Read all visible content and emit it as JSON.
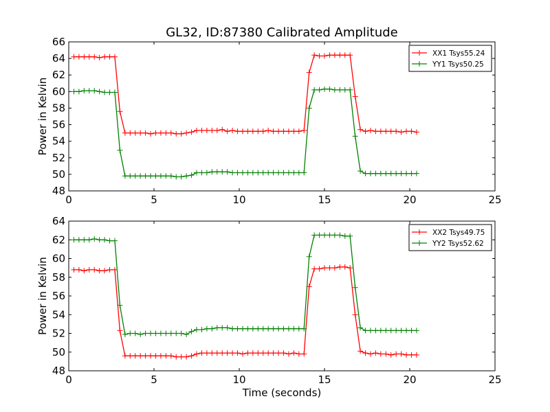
{
  "figure_title": "GL32, ID:87380 Calibrated Amplitude",
  "chart_data": [
    {
      "type": "line",
      "title": "GL32, ID:87380 Calibrated Amplitude",
      "xlabel": "",
      "ylabel": "Power in Kelvin",
      "xlim": [
        0,
        25
      ],
      "ylim": [
        48,
        66
      ],
      "xticks": [
        0,
        5,
        10,
        15,
        20,
        25
      ],
      "yticks": [
        48,
        50,
        52,
        54,
        56,
        58,
        60,
        62,
        64,
        66
      ],
      "legend_position": "top-right",
      "grid": false,
      "x": [
        0.3,
        0.6,
        0.9,
        1.2,
        1.5,
        1.8,
        2.1,
        2.4,
        2.7,
        3.0,
        3.3,
        3.6,
        3.9,
        4.2,
        4.5,
        4.8,
        5.1,
        5.4,
        5.7,
        6.0,
        6.3,
        6.6,
        6.9,
        7.2,
        7.5,
        7.8,
        8.1,
        8.4,
        8.7,
        9.0,
        9.3,
        9.6,
        9.9,
        10.2,
        10.5,
        10.8,
        11.1,
        11.4,
        11.7,
        12.0,
        12.3,
        12.6,
        12.9,
        13.2,
        13.5,
        13.8,
        14.1,
        14.4,
        14.7,
        15.0,
        15.3,
        15.6,
        15.9,
        16.2,
        16.5,
        16.8,
        17.1,
        17.4,
        17.7,
        18.0,
        18.3,
        18.6,
        18.9,
        19.2,
        19.5,
        19.8,
        20.1,
        20.4
      ],
      "series": [
        {
          "name": "XX1 Tsys55.24",
          "color": "#ff0000",
          "values": [
            64.2,
            64.2,
            64.2,
            64.2,
            64.2,
            64.1,
            64.2,
            64.2,
            64.2,
            57.6,
            55.0,
            55.0,
            55.0,
            55.0,
            55.0,
            54.9,
            55.0,
            55.0,
            55.0,
            55.0,
            54.9,
            54.9,
            55.0,
            55.1,
            55.3,
            55.3,
            55.3,
            55.3,
            55.3,
            55.4,
            55.2,
            55.3,
            55.2,
            55.2,
            55.2,
            55.2,
            55.2,
            55.2,
            55.3,
            55.2,
            55.2,
            55.2,
            55.2,
            55.2,
            55.2,
            55.3,
            62.3,
            64.4,
            64.3,
            64.3,
            64.4,
            64.4,
            64.4,
            64.4,
            64.4,
            59.4,
            55.4,
            55.2,
            55.3,
            55.2,
            55.2,
            55.2,
            55.2,
            55.2,
            55.1,
            55.2,
            55.2,
            55.1
          ]
        },
        {
          "name": "YY1 Tsys50.25",
          "color": "#008000",
          "values": [
            60.0,
            60.0,
            60.1,
            60.1,
            60.1,
            60.0,
            59.9,
            59.9,
            59.9,
            52.9,
            49.8,
            49.8,
            49.8,
            49.8,
            49.8,
            49.8,
            49.8,
            49.8,
            49.8,
            49.8,
            49.7,
            49.7,
            49.8,
            49.9,
            50.2,
            50.2,
            50.2,
            50.3,
            50.3,
            50.3,
            50.3,
            50.2,
            50.2,
            50.2,
            50.2,
            50.2,
            50.2,
            50.2,
            50.2,
            50.2,
            50.2,
            50.2,
            50.2,
            50.2,
            50.2,
            50.2,
            58.0,
            60.2,
            60.2,
            60.3,
            60.3,
            60.2,
            60.2,
            60.2,
            60.2,
            54.6,
            50.4,
            50.1,
            50.1,
            50.1,
            50.1,
            50.1,
            50.1,
            50.1,
            50.1,
            50.1,
            50.1,
            50.1
          ]
        }
      ]
    },
    {
      "type": "line",
      "title": "",
      "xlabel": "Time (seconds)",
      "ylabel": "Power in Kelvin",
      "xlim": [
        0,
        25
      ],
      "ylim": [
        48,
        64
      ],
      "xticks": [
        0,
        5,
        10,
        15,
        20,
        25
      ],
      "yticks": [
        48,
        50,
        52,
        54,
        56,
        58,
        60,
        62,
        64
      ],
      "legend_position": "top-right",
      "grid": false,
      "x": [
        0.3,
        0.6,
        0.9,
        1.2,
        1.5,
        1.8,
        2.1,
        2.4,
        2.7,
        3.0,
        3.3,
        3.6,
        3.9,
        4.2,
        4.5,
        4.8,
        5.1,
        5.4,
        5.7,
        6.0,
        6.3,
        6.6,
        6.9,
        7.2,
        7.5,
        7.8,
        8.1,
        8.4,
        8.7,
        9.0,
        9.3,
        9.6,
        9.9,
        10.2,
        10.5,
        10.8,
        11.1,
        11.4,
        11.7,
        12.0,
        12.3,
        12.6,
        12.9,
        13.2,
        13.5,
        13.8,
        14.1,
        14.4,
        14.7,
        15.0,
        15.3,
        15.6,
        15.9,
        16.2,
        16.5,
        16.8,
        17.1,
        17.4,
        17.7,
        18.0,
        18.3,
        18.6,
        18.9,
        19.2,
        19.5,
        19.8,
        20.1,
        20.4
      ],
      "series": [
        {
          "name": "XX2 Tsys49.75",
          "color": "#ff0000",
          "values": [
            58.8,
            58.8,
            58.7,
            58.8,
            58.8,
            58.7,
            58.7,
            58.8,
            58.8,
            52.3,
            49.6,
            49.6,
            49.6,
            49.6,
            49.6,
            49.6,
            49.6,
            49.6,
            49.6,
            49.6,
            49.5,
            49.5,
            49.5,
            49.6,
            49.8,
            49.9,
            49.9,
            49.9,
            49.9,
            49.9,
            49.9,
            49.9,
            49.9,
            49.8,
            49.9,
            49.9,
            49.9,
            49.9,
            49.9,
            49.9,
            49.9,
            49.9,
            49.8,
            49.9,
            49.8,
            49.8,
            57.0,
            58.9,
            58.9,
            59.0,
            59.0,
            59.0,
            59.1,
            59.1,
            59.0,
            54.0,
            50.1,
            49.9,
            49.8,
            49.9,
            49.8,
            49.8,
            49.7,
            49.8,
            49.8,
            49.7,
            49.7,
            49.7
          ]
        },
        {
          "name": "YY2 Tsys52.62",
          "color": "#008000",
          "values": [
            62.0,
            62.0,
            62.0,
            62.0,
            62.1,
            62.0,
            62.0,
            61.9,
            61.9,
            55.0,
            51.9,
            52.0,
            52.0,
            51.9,
            52.0,
            52.0,
            52.0,
            52.0,
            52.0,
            52.0,
            52.0,
            52.0,
            51.9,
            52.2,
            52.4,
            52.4,
            52.5,
            52.5,
            52.6,
            52.6,
            52.6,
            52.5,
            52.5,
            52.5,
            52.5,
            52.5,
            52.5,
            52.5,
            52.5,
            52.5,
            52.5,
            52.5,
            52.5,
            52.5,
            52.5,
            52.5,
            60.2,
            62.5,
            62.5,
            62.5,
            62.5,
            62.5,
            62.5,
            62.4,
            62.4,
            56.9,
            52.6,
            52.3,
            52.3,
            52.3,
            52.3,
            52.3,
            52.3,
            52.3,
            52.3,
            52.3,
            52.3,
            52.3
          ]
        }
      ]
    }
  ]
}
